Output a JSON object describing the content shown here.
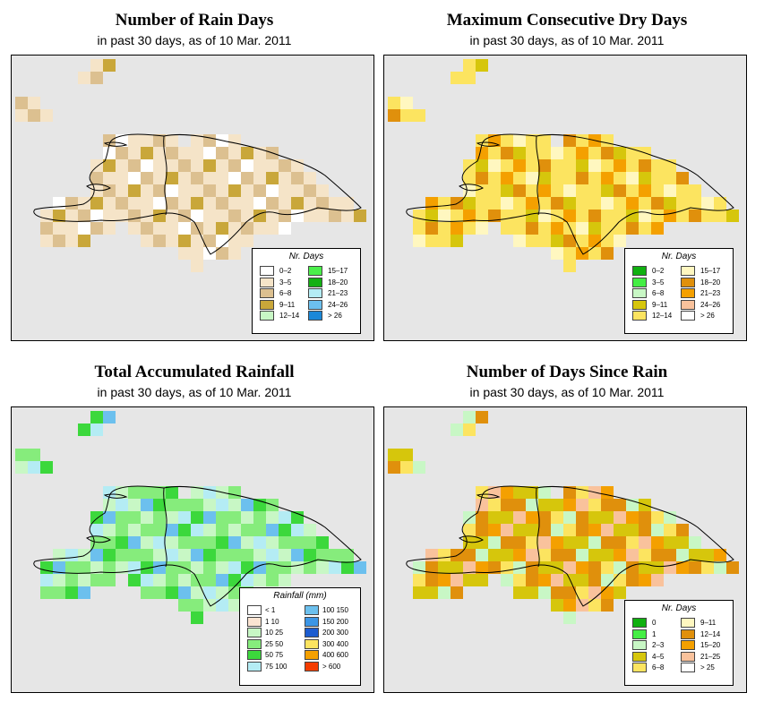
{
  "panels": [
    {
      "title": "Number of Rain Days",
      "subtitle": "in past 30 days, as of  10 Mar. 2011",
      "legend": {
        "title": "Nr. Days",
        "items": [
          {
            "label": "0–2",
            "color": "#ffffff"
          },
          {
            "label": "3–5",
            "color": "#f5e4c8"
          },
          {
            "label": "6–8",
            "color": "#dcc090"
          },
          {
            "label": "9–11",
            "color": "#c9a73a"
          },
          {
            "label": "12–14",
            "color": "#c8f7c5"
          },
          {
            "label": "15–17",
            "color": "#4bef4b"
          },
          {
            "label": "18–20",
            "color": "#14b014"
          },
          {
            "label": "21–23",
            "color": "#b4ecf4"
          },
          {
            "label": "24–26",
            "color": "#6cc0ee"
          },
          {
            "label": "> 26",
            "color": "#1b88d8"
          }
        ]
      }
    },
    {
      "title": "Maximum Consecutive Dry Days",
      "subtitle": "in past 30 days, as of  10 Mar. 2011",
      "legend": {
        "title": "Nr. Days",
        "items": [
          {
            "label": "0–2",
            "color": "#10b010"
          },
          {
            "label": "3–5",
            "color": "#44ee44"
          },
          {
            "label": "6–8",
            "color": "#c8f7c5"
          },
          {
            "label": "9–11",
            "color": "#d6c60c"
          },
          {
            "label": "12–14",
            "color": "#fce460"
          },
          {
            "label": "15–17",
            "color": "#fff7c0"
          },
          {
            "label": "18–20",
            "color": "#e0900c"
          },
          {
            "label": "21–23",
            "color": "#f4a000"
          },
          {
            "label": "24–26",
            "color": "#f9c29c"
          },
          {
            "label": "> 26",
            "color": "#ffffff"
          }
        ]
      }
    },
    {
      "title": "Total Accumulated Rainfall",
      "subtitle": "in past 30 days, as of  10 Mar. 2011",
      "legend": {
        "title": "Rainfall (mm)",
        "items": [
          {
            "label": "< 1",
            "color": "#ffffff"
          },
          {
            "label": "1    10",
            "color": "#fbe4d2"
          },
          {
            "label": "10    25",
            "color": "#c8f7c5"
          },
          {
            "label": "25    50",
            "color": "#86ec7c"
          },
          {
            "label": "50    75",
            "color": "#3cd83c"
          },
          {
            "label": "75   100",
            "color": "#b4ecf4"
          },
          {
            "label": "100   150",
            "color": "#6cc0ee"
          },
          {
            "label": "150   200",
            "color": "#3c96e6"
          },
          {
            "label": "200   300",
            "color": "#1c5cd0"
          },
          {
            "label": "300   400",
            "color": "#fce460"
          },
          {
            "label": "400   600",
            "color": "#f4a000"
          },
          {
            "label": "> 600",
            "color": "#f43c00"
          }
        ]
      }
    },
    {
      "title": "Number of Days Since Rain",
      "subtitle": "in past 30 days, as of  10 Mar. 2011",
      "legend": {
        "title": "Nr. Days",
        "items": [
          {
            "label": "0",
            "color": "#10b010"
          },
          {
            "label": "1",
            "color": "#44ee44"
          },
          {
            "label": "2–3",
            "color": "#c8f7c5"
          },
          {
            "label": "4–5",
            "color": "#d6c60c"
          },
          {
            "label": "6–8",
            "color": "#fce460"
          },
          {
            "label": "9–11",
            "color": "#fff7c0"
          },
          {
            "label": "12–14",
            "color": "#e0900c"
          },
          {
            "label": "15–20",
            "color": "#f4a000"
          },
          {
            "label": "21–25",
            "color": "#f9c29c"
          },
          {
            "label": "> 25",
            "color": "#ffffff"
          }
        ]
      }
    }
  ]
}
